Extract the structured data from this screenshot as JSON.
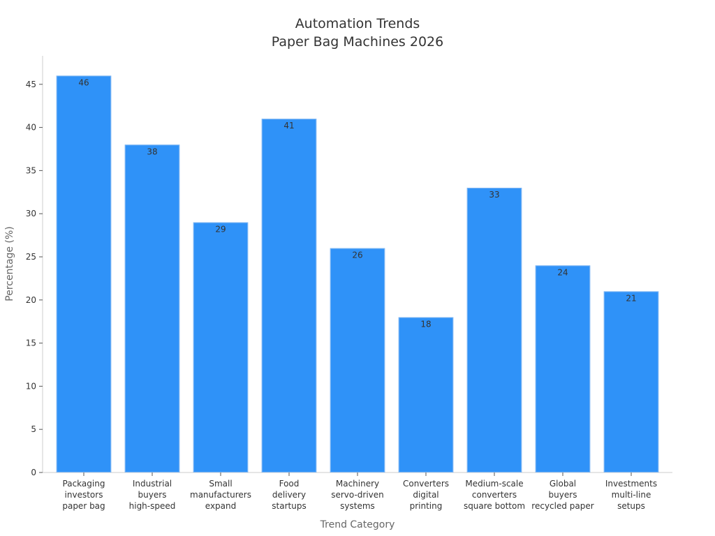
{
  "chart_data": {
    "type": "bar",
    "title_lines": [
      "Automation Trends",
      "Paper Bag Machines 2026"
    ],
    "xlabel": "Trend Category",
    "ylabel": "Percentage (%)",
    "categories": [
      [
        "Packaging",
        "investors",
        "paper bag"
      ],
      [
        "Industrial",
        "buyers",
        "high-speed"
      ],
      [
        "Small",
        "manufacturers",
        "expand"
      ],
      [
        "Food",
        "delivery",
        "startups"
      ],
      [
        "Machinery",
        "servo-driven",
        "systems"
      ],
      [
        "Converters",
        "digital",
        "printing"
      ],
      [
        "Medium-scale",
        "converters",
        "square bottom"
      ],
      [
        "Global",
        "buyers",
        "recycled paper"
      ],
      [
        "Investments",
        "multi-line",
        "setups"
      ]
    ],
    "values": [
      46,
      38,
      29,
      41,
      26,
      18,
      33,
      24,
      21
    ],
    "yticks": [
      0,
      5,
      10,
      15,
      20,
      25,
      30,
      35,
      40,
      45
    ],
    "ylim": [
      0,
      48.3
    ],
    "bar_color": "#2f92f8",
    "grid": false,
    "legend": "none"
  }
}
